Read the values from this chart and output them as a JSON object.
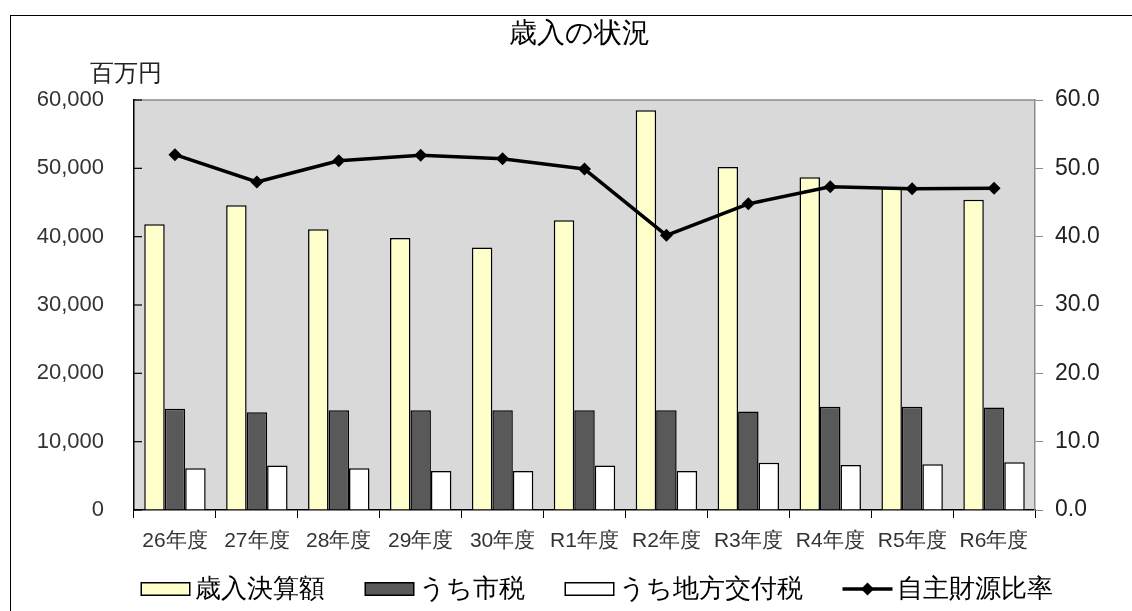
{
  "chart_data": {
    "type": "bar",
    "title": "歳入の状況",
    "ylabel": "百万円",
    "categories": [
      "26年度",
      "27年度",
      "28年度",
      "29年度",
      "30年度",
      "R1年度",
      "R2年度",
      "R3年度",
      "R4年度",
      "R5年度",
      "R6年度"
    ],
    "series": [
      {
        "name": "歳入決算額",
        "color": "#ffffcc",
        "values": [
          41800,
          44600,
          41100,
          39800,
          38400,
          42400,
          58500,
          50200,
          48700,
          47200,
          45400
        ]
      },
      {
        "name": "うち市税",
        "color": "#595959",
        "values": [
          14800,
          14300,
          14600,
          14600,
          14600,
          14600,
          14600,
          14400,
          15100,
          15100,
          15000
        ]
      },
      {
        "name": "うち地方交付税",
        "color": "#ffffff",
        "values": [
          6100,
          6500,
          6100,
          5700,
          5700,
          6500,
          5700,
          6900,
          6600,
          6700,
          7000
        ]
      },
      {
        "name": "自主財源比率",
        "type": "line",
        "axis": "y2",
        "color": "#000000",
        "values": [
          52.0,
          48.0,
          51.1,
          51.9,
          51.4,
          49.9,
          40.2,
          44.8,
          47.3,
          47.0,
          47.1
        ]
      }
    ],
    "ylim": [
      0,
      60000
    ],
    "yticks": [
      0,
      {
        "value": 10000,
        "label": "10,000"
      },
      {
        "value": 20000,
        "label": "20,000"
      },
      {
        "value": 30000,
        "label": "30,000"
      },
      {
        "value": 40000,
        "label": "40,000"
      },
      {
        "value": 50000,
        "label": "50,000"
      },
      {
        "value": 60000,
        "label": "60,000"
      }
    ],
    "y2lim": [
      0,
      60
    ],
    "y2ticks": [
      {
        "value": 0,
        "label": "0.0"
      },
      {
        "value": 10,
        "label": "10.0"
      },
      {
        "value": 20,
        "label": "20.0"
      },
      {
        "value": 30,
        "label": "30.0"
      },
      {
        "value": 40,
        "label": "40.0"
      },
      {
        "value": 50,
        "label": "50.0"
      },
      {
        "value": 60,
        "label": "60.0"
      }
    ],
    "marker": "diamond",
    "legend": "bottom"
  }
}
